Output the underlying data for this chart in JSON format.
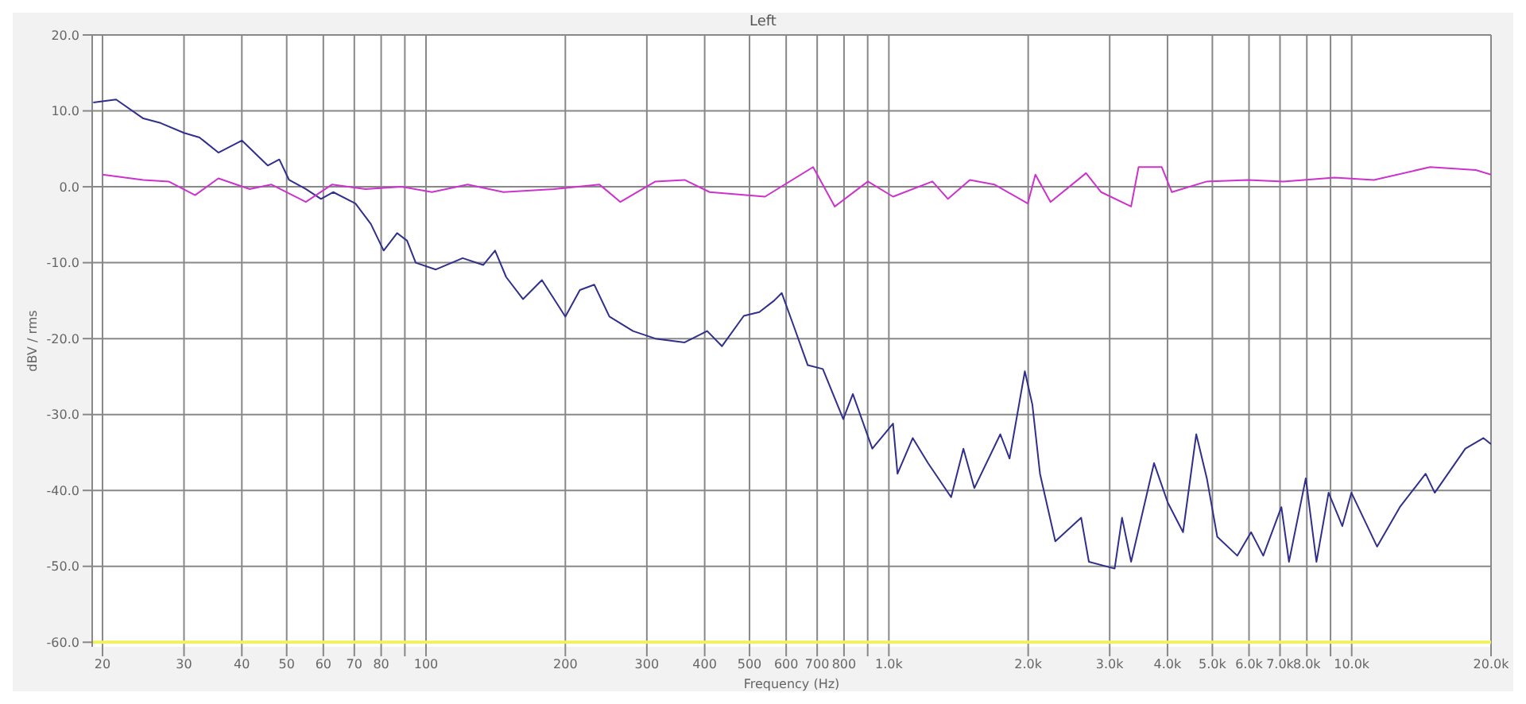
{
  "chart_data": {
    "type": "line",
    "title": "Left",
    "xlabel": "Frequency (Hz)",
    "ylabel": "dBV / rms",
    "log": "x",
    "grid": true,
    "xlim": [
      19,
      20000
    ],
    "ylim": [
      -60.6,
      20
    ],
    "xticks": [
      {
        "value": 20,
        "label": "20"
      },
      {
        "value": 30,
        "label": "30"
      },
      {
        "value": 40,
        "label": "40"
      },
      {
        "value": 50,
        "label": "50"
      },
      {
        "value": 60,
        "label": "60"
      },
      {
        "value": 70,
        "label": "70"
      },
      {
        "value": 80,
        "label": "80"
      },
      {
        "value": 90,
        "label": null
      },
      {
        "value": 100,
        "label": "100"
      },
      {
        "value": 200,
        "label": "200"
      },
      {
        "value": 300,
        "label": "300"
      },
      {
        "value": 400,
        "label": "400"
      },
      {
        "value": 500,
        "label": "500"
      },
      {
        "value": 600,
        "label": "600"
      },
      {
        "value": 700,
        "label": "700"
      },
      {
        "value": 800,
        "label": "800"
      },
      {
        "value": 900,
        "label": null
      },
      {
        "value": 1000,
        "label": "1.0k"
      },
      {
        "value": 2000,
        "label": "2.0k"
      },
      {
        "value": 3000,
        "label": "3.0k"
      },
      {
        "value": 4000,
        "label": "4.0k"
      },
      {
        "value": 5000,
        "label": "5.0k"
      },
      {
        "value": 6000,
        "label": "6.0k"
      },
      {
        "value": 7000,
        "label": "7.0k"
      },
      {
        "value": 8000,
        "label": "8.0k"
      },
      {
        "value": 9000,
        "label": null
      },
      {
        "value": 10000,
        "label": "10.0k"
      },
      {
        "value": 20000,
        "label": "20.0k"
      }
    ],
    "yticks": [
      {
        "value": -60,
        "label": "-60.0"
      },
      {
        "value": -50,
        "label": "-50.0"
      },
      {
        "value": -40,
        "label": "-40.0"
      },
      {
        "value": -30,
        "label": "-30.0"
      },
      {
        "value": -20,
        "label": "-20.0"
      },
      {
        "value": -10,
        "label": "-10.0"
      },
      {
        "value": 0,
        "label": "0.0"
      },
      {
        "value": 10,
        "label": "10.0"
      },
      {
        "value": 20,
        "label": "20.0"
      }
    ],
    "ref_lines": [
      {
        "axis": "y",
        "value": -60,
        "label": null,
        "color": "#f0f060"
      }
    ],
    "series": [
      {
        "color": "#30308c",
        "x": [
          19.1,
          21.4,
          24.5,
          26.7,
          30,
          32.4,
          35.6,
          40,
          45.5,
          48.2,
          50.6,
          55,
          59.3,
          63,
          70.4,
          76,
          81,
          86.6,
          91,
          95,
          105,
          120,
          133,
          141,
          149,
          162,
          178,
          200,
          215,
          231,
          249,
          280,
          313,
          362,
          405,
          436,
          486,
          525,
          565,
          587,
          620,
          668,
          720,
          797,
          836,
          921,
          1021,
          1044,
          1126,
          1215,
          1363,
          1449,
          1530,
          1741,
          1823,
          1967,
          2042,
          2121,
          2289,
          2603,
          2705,
          3075,
          3190,
          3337,
          3741,
          4005,
          4321,
          4615,
          4864,
          5123,
          5661,
          6062,
          6440,
          7048,
          7320,
          7958,
          8392,
          8914,
          9545,
          9986,
          11345,
          12707,
          14446,
          15116,
          17600,
          19250,
          20000
        ],
        "values": [
          11.1,
          11.5,
          9.0,
          8.4,
          7.1,
          6.5,
          4.5,
          6.1,
          2.8,
          3.6,
          0.9,
          -0.3,
          -1.6,
          -0.7,
          -2.2,
          -4.9,
          -8.4,
          -6.1,
          -7.1,
          -10.0,
          -10.9,
          -9.4,
          -10.3,
          -8.4,
          -11.9,
          -14.8,
          -12.3,
          -17.1,
          -13.6,
          -12.9,
          -17.1,
          -19.0,
          -20.0,
          -20.5,
          -19.0,
          -21.0,
          -17.0,
          -16.5,
          -15.0,
          -14.0,
          -18.0,
          -23.5,
          -24.0,
          -30.6,
          -27.3,
          -34.5,
          -31.2,
          -37.8,
          -33.1,
          -36.4,
          -40.9,
          -34.5,
          -39.7,
          -32.6,
          -35.8,
          -24.3,
          -28.7,
          -37.8,
          -46.7,
          -43.6,
          -49.4,
          -50.3,
          -43.6,
          -49.4,
          -36.4,
          -41.6,
          -45.5,
          -32.6,
          -38.4,
          -46.1,
          -48.6,
          -45.5,
          -48.6,
          -42.2,
          -49.4,
          -38.4,
          -49.4,
          -40.3,
          -44.7,
          -40.3,
          -47.4,
          -42.2,
          -37.8,
          -40.3,
          -34.5,
          -33.1,
          -33.9
        ]
      },
      {
        "color": "#cc33cc",
        "x": [
          20,
          24.5,
          27.8,
          31.7,
          35.6,
          41.6,
          46.3,
          55,
          62.7,
          74,
          88.5,
          103,
          123,
          147,
          189,
          237,
          263,
          313,
          362,
          410,
          540,
          686,
          764,
          901,
          1021,
          1242,
          1342,
          1496,
          1690,
          1996,
          2073,
          2235,
          2667,
          2875,
          3337,
          3464,
          3886,
          4088,
          4864,
          5968,
          7120,
          9180,
          11170,
          14770,
          18540,
          20000
        ],
        "values": [
          1.6,
          0.9,
          0.7,
          -1.1,
          1.1,
          -0.3,
          0.3,
          -2.0,
          0.3,
          -0.3,
          0.0,
          -0.7,
          0.3,
          -0.7,
          -0.3,
          0.3,
          -2.0,
          0.7,
          0.9,
          -0.7,
          -1.3,
          2.6,
          -2.6,
          0.7,
          -1.3,
          0.7,
          -1.6,
          0.9,
          0.3,
          -2.2,
          1.6,
          -2.0,
          1.8,
          -0.7,
          -2.6,
          2.6,
          2.6,
          -0.7,
          0.7,
          0.9,
          0.7,
          1.2,
          0.9,
          2.6,
          2.2,
          1.6
        ]
      }
    ]
  }
}
